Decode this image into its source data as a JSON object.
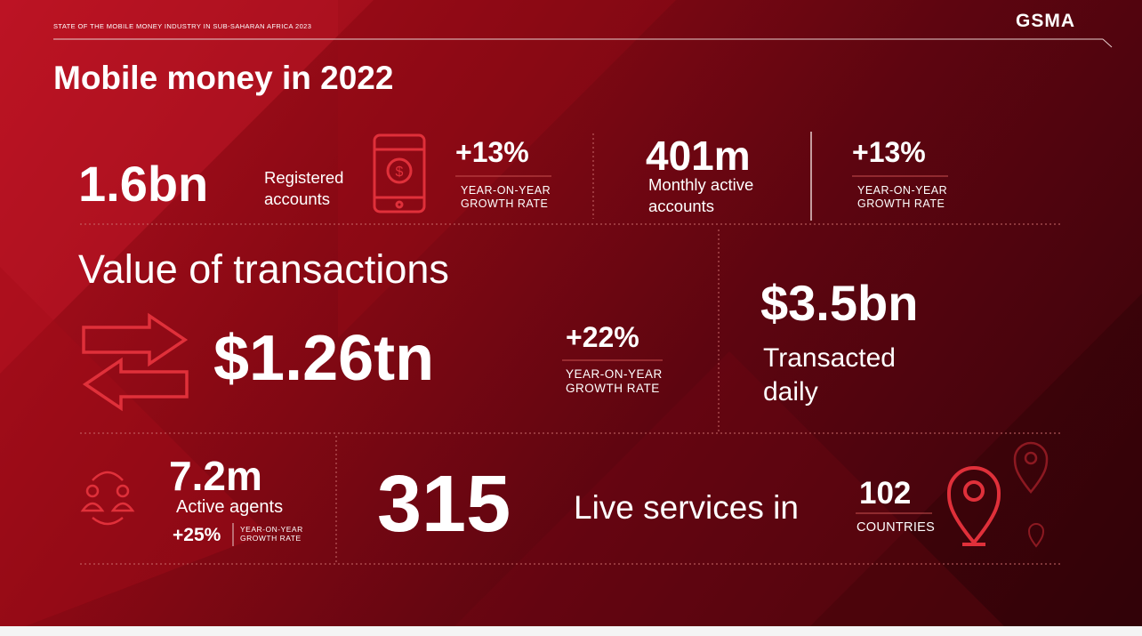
{
  "header": {
    "subtitle": "STATE OF THE MOBILE MONEY INDUSTRY IN SUB-SAHARAN AFRICA 2023",
    "logo": "GSMA",
    "title": "Mobile money in 2022"
  },
  "registered": {
    "value": "1.6bn",
    "label": "Registered accounts",
    "growth": "+13%",
    "growth_label": "YEAR-ON-YEAR GROWTH RATE"
  },
  "active": {
    "value": "401m",
    "label": "Monthly active accounts",
    "growth": "+13%",
    "growth_label": "YEAR-ON-YEAR GROWTH RATE"
  },
  "transactions": {
    "heading": "Value of transactions",
    "value": "$1.26tn",
    "growth": "+22%",
    "growth_label": "YEAR-ON-YEAR GROWTH RATE"
  },
  "daily": {
    "value": "$3.5bn",
    "label": "Transacted daily"
  },
  "agents": {
    "value": "7.2m",
    "label": "Active agents",
    "growth": "+25%",
    "growth_label": "YEAR-ON-YEAR GROWTH RATE"
  },
  "services": {
    "value": "315",
    "label": "Live services in",
    "countries": "102",
    "countries_label": "COUNTRIES"
  }
}
